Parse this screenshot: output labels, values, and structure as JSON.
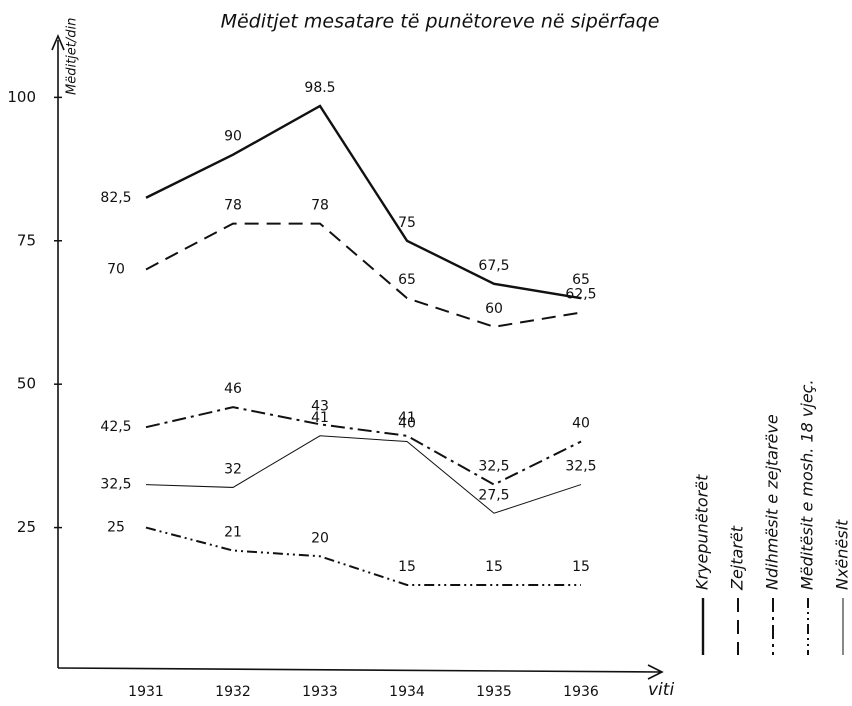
{
  "chart_data": {
    "type": "line",
    "title": "Mëditjet mesatare të punëtoreve në sipërfaqe",
    "y_label": "Mëditjet/din",
    "x_label": "viti",
    "categories": [
      "1931",
      "1932",
      "1933",
      "1934",
      "1935",
      "1936"
    ],
    "ylim": [
      0,
      110
    ],
    "yticks": [
      25,
      50,
      75,
      100
    ],
    "series": [
      {
        "name": "Kryepunëtorët",
        "color": "#111111",
        "linestyle": "solid",
        "values": [
          82.5,
          90,
          98.5,
          75,
          67.5,
          65
        ],
        "value_labels": [
          "82,5",
          "90",
          "98.5",
          "75",
          "67,5",
          "65"
        ]
      },
      {
        "name": "Zejtarët",
        "color": "#111111",
        "linestyle": "dashed",
        "values": [
          70,
          78,
          78,
          65,
          60,
          62.5
        ],
        "value_labels": [
          "70",
          "78",
          "78",
          "65",
          "60",
          "62,5"
        ]
      },
      {
        "name": "Ndihmësit e zejtarëve",
        "color": "#111111",
        "linestyle": "dashdot",
        "values": [
          42.5,
          46,
          43,
          41,
          32.5,
          40
        ],
        "value_labels": [
          "42,5",
          "46",
          "43",
          "41",
          "32,5",
          "40"
        ]
      },
      {
        "name": "Mëditësit e mosh. 18 vjeç.",
        "color": "#111111",
        "linestyle": "dashdotdot",
        "values": [
          25,
          21,
          20,
          15,
          15,
          15
        ],
        "value_labels": [
          "25",
          "21",
          "20",
          "15",
          "15",
          "15"
        ]
      },
      {
        "name": "Nxënësit",
        "color": "#111111",
        "linestyle": "thin",
        "values": [
          32.5,
          32,
          41,
          40,
          27.5,
          32.5
        ],
        "value_labels": [
          "32,5",
          "32",
          "41",
          "40",
          "27,5",
          "32,5"
        ]
      }
    ]
  }
}
